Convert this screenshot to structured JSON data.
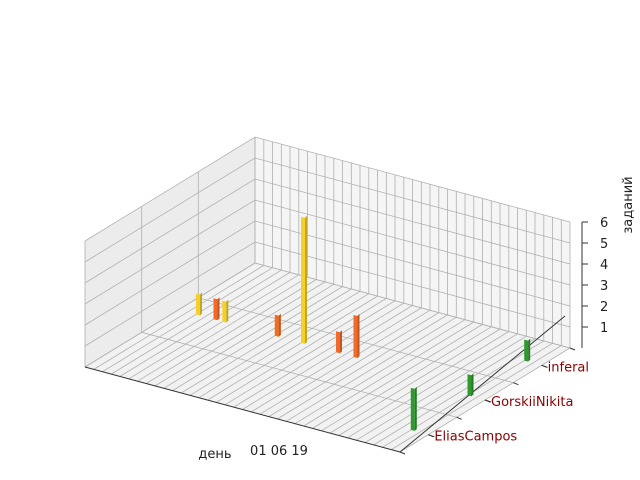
{
  "chart_data": {
    "type": "bar3d",
    "xlabel": "день",
    "ylabel": "",
    "zlabel": "заданий",
    "x_tick_label": "01 06 19",
    "z_ticks": [
      1,
      2,
      3,
      4,
      5,
      6
    ],
    "zlim": [
      0,
      6
    ],
    "grid": true,
    "categories": [
      "EliasCampos",
      "GorskiiNikita",
      "inferal"
    ],
    "category_colors": [
      "#2e9a2e",
      "#2e9a2e",
      "#2e9a2e"
    ],
    "series": [
      {
        "color": "#f5d02a",
        "points": [
          {
            "x": 2,
            "value": 1
          },
          {
            "x": 5,
            "value": 1
          },
          {
            "x": 11,
            "value": 1
          },
          {
            "x": 14,
            "value": 6
          }
        ]
      },
      {
        "color": "#f26a2a",
        "points": [
          {
            "x": 4,
            "value": 1
          },
          {
            "x": 11,
            "value": 1
          },
          {
            "x": 18,
            "value": 1
          },
          {
            "x": 20,
            "value": 2
          }
        ]
      },
      {
        "color": "#2e9a2e",
        "points": [
          {
            "category": "EliasCampos",
            "x": 34,
            "value": 2
          },
          {
            "category": "GorskiiNikita",
            "x": 34,
            "value": 1
          },
          {
            "category": "inferal",
            "x": 34,
            "value": 1
          }
        ]
      }
    ]
  }
}
